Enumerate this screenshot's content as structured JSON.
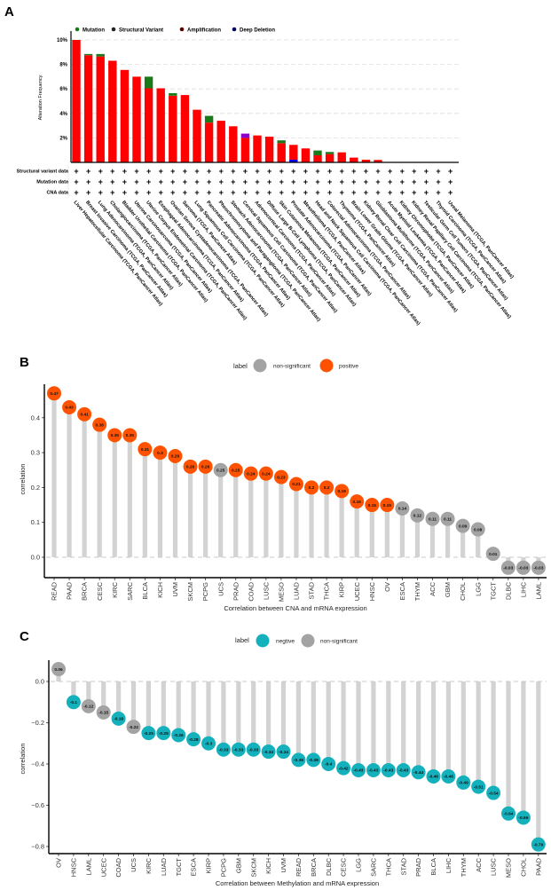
{
  "panels": {
    "a": "A",
    "b": "B",
    "c": "C"
  },
  "chart_data": [
    {
      "type": "bar",
      "stacked": true,
      "title": "",
      "ylabel": "Alteration Frequency",
      "ylim": [
        0,
        10.5
      ],
      "yticks": [
        "2%",
        "4%",
        "6%",
        "8%",
        "10%"
      ],
      "ytick_values": [
        2,
        4,
        6,
        8,
        10
      ],
      "grid": true,
      "legend_position": "top",
      "legend": [
        {
          "key": "mutation",
          "label": "Mutation",
          "color": "#1a7a1a"
        },
        {
          "key": "sv",
          "label": "Structural Variant",
          "color": "#8b00c9"
        },
        {
          "key": "amp",
          "label": "Amplification",
          "color": "#ff0000"
        },
        {
          "key": "dd",
          "label": "Deep Deletion",
          "color": "#0000ee"
        }
      ],
      "series_order": [
        "dd",
        "amp",
        "sv",
        "mutation"
      ],
      "data_rows": [
        "Structural variant data",
        "Mutation data",
        "CNA data"
      ],
      "row_marker": "+",
      "categories": [
        "Liver Hepatocellular Carcinoma (TCGA, PanCancer Atlas)",
        "Breast Invasive Carcinoma (TCGA, PanCancer Atlas)",
        "Lung Adenocarcinoma (TCGA, PanCancer Atlas)",
        "Cholangiocarcinoma (TCGA, PanCancer Atlas)",
        "Bladder Urothelial Carcinoma (TCGA, PanCancer Atlas)",
        "Uterine Carcinosarcoma (TCGA, PanCancer Atlas)",
        "Uterine Corpus Endometrial Carcinoma (TCGA, PanCancer Atlas)",
        "Esophageal Adenocarcinoma (TCGA, PanCancer Atlas)",
        "Ovarian Serous Cystadenocarcinoma (TCGA, PanCancer Atlas)",
        "Sarcoma (TCGA, PanCancer Atlas)",
        "Lung Squamous Cell Carcinoma (TCGA, PanCancer Atlas)",
        "Pancreatic Adenocarcinoma (TCGA, PanCancer Atlas)",
        "Pheochromocytoma and Paraganglioma (TCGA, PanCancer Atlas)",
        "Stomach Adenocarcinoma (TCGA, PanCancer Atlas)",
        "Cervical Squamous Cell Carcinoma (TCGA, PanCancer Atlas)",
        "Adrenocortical Carcinoma (TCGA, PanCancer Atlas)",
        "Diffuse Large B-Cell Lymphoma (TCGA, PanCancer Atlas)",
        "Skin Cutaneous Melanoma (TCGA, PanCancer Atlas)",
        "Prostate Adenocarcinoma (TCGA, PanCancer Atlas)",
        "Mesothelioma (TCGA, PanCancer Atlas)",
        "Head and Neck Squamous Cell Carcinoma (TCGA, PanCancer Atlas)",
        "Colorectal Adenocarcinoma (TCGA, PanCancer Atlas)",
        "Thymoma (TCGA, PanCancer Atlas)",
        "Brain Lower Grade Glioma (TCGA, PanCancer Atlas)",
        "Kidney Renal Clear Cell Carcinoma (TCGA, PanCancer Atlas)",
        "Glioblastoma Multiforme (TCGA, PanCancer Atlas)",
        "Acute Myeloid Leukemia (TCGA, PanCancer Atlas)",
        "Kidney Chromophobe (TCGA, PanCancer Atlas)",
        "Kidney Renal Papillary Cell Carcinoma (TCGA, PanCancer Atlas)",
        "Testicular Germ Cell Tumors (TCGA, PanCancer Atlas)",
        "Thyroid Carcinoma (TCGA, PanCancer Atlas)",
        "Uveal Melanoma (TCGA, PanCancer Atlas)"
      ],
      "series": [
        {
          "name": "Deep Deletion",
          "key": "dd",
          "values": [
            0,
            0,
            0,
            0,
            0,
            0,
            0,
            0,
            0,
            0,
            0,
            0,
            0,
            0,
            0,
            0,
            0,
            0,
            0.22,
            0,
            0,
            0,
            0,
            0,
            0,
            0,
            0,
            0,
            0,
            0,
            0,
            0
          ]
        },
        {
          "name": "Amplification",
          "key": "amp",
          "values": [
            10.0,
            8.75,
            8.65,
            8.3,
            7.55,
            7.0,
            6.05,
            6.05,
            5.45,
            5.5,
            4.3,
            3.25,
            3.4,
            2.95,
            2.0,
            2.2,
            2.1,
            1.57,
            1.21,
            1.14,
            0.58,
            0.68,
            0.82,
            0.39,
            0.22,
            0.2,
            0,
            0,
            0,
            0,
            0,
            0
          ]
        },
        {
          "name": "Structural Variant",
          "key": "sv",
          "values": [
            0,
            0,
            0,
            0,
            0,
            0,
            0,
            0,
            0,
            0,
            0,
            0,
            0,
            0,
            0.35,
            0,
            0,
            0,
            0,
            0,
            0,
            0,
            0,
            0,
            0,
            0,
            0,
            0,
            0,
            0,
            0,
            0
          ]
        },
        {
          "name": "Mutation",
          "key": "mutation",
          "values": [
            0,
            0.1,
            0.2,
            0,
            0,
            0,
            0.95,
            0,
            0.2,
            0,
            0,
            0.55,
            0,
            0,
            0,
            0,
            0,
            0.23,
            0,
            0,
            0.39,
            0.17,
            0,
            0,
            0,
            0,
            0,
            0,
            0,
            0,
            0,
            0
          ]
        }
      ]
    },
    {
      "type": "lollipop",
      "title": "",
      "xlabel": "Correlation between CNA and mRNA expression",
      "ylabel": "correlation",
      "ylim": [
        -0.05,
        0.49
      ],
      "yticks": [
        "0.0",
        "0.1",
        "0.2",
        "0.3",
        "0.4"
      ],
      "ytick_values": [
        0,
        0.1,
        0.2,
        0.3,
        0.4
      ],
      "legend_title": "label",
      "legend_position": "top-right",
      "legend": [
        {
          "key": "ns",
          "label": "non-significant",
          "color": "#a3a3a3"
        },
        {
          "key": "pos",
          "label": "positive",
          "color": "#ff5200"
        }
      ],
      "categories": [
        "READ",
        "PAAD",
        "BRCA",
        "CESC",
        "KIRC",
        "SARC",
        "BLCA",
        "KICH",
        "UVM",
        "SKCM",
        "PCPG",
        "UCS",
        "PRAD",
        "COAD",
        "LUSC",
        "MESO",
        "LUAD",
        "STAD",
        "THCA",
        "KIRP",
        "UCEC",
        "HNSC",
        "OV",
        "ESCA",
        "THYM",
        "ACC",
        "GBM",
        "CHOL",
        "LGG",
        "TGCT",
        "DLBC",
        "LIHC",
        "LAML"
      ],
      "values": [
        0.47,
        0.43,
        0.41,
        0.38,
        0.35,
        0.35,
        0.31,
        0.3,
        0.29,
        0.26,
        0.26,
        0.25,
        0.25,
        0.24,
        0.24,
        0.23,
        0.21,
        0.2,
        0.2,
        0.19,
        0.16,
        0.15,
        0.15,
        0.14,
        0.12,
        0.11,
        0.11,
        0.09,
        0.08,
        0.01,
        -0.03,
        -0.03,
        -0.03
      ],
      "value_labels": [
        "0.47",
        "0.43",
        "0.41",
        "0.38",
        "0.35",
        "0.35",
        "0.31",
        "0.3",
        "0.29",
        "0.26",
        "0.26",
        "0.25",
        "0.25",
        "0.24",
        "0.24",
        "0.23",
        "0.21",
        "0.2",
        "0.2",
        "0.19",
        "0.16",
        "0.15",
        "0.15",
        "0.14",
        "0.12",
        "0.11",
        "0.11",
        "0.09",
        "0.08",
        "0.01",
        "-0.03",
        "-0.03",
        "-0.03"
      ],
      "groups": [
        "pos",
        "pos",
        "pos",
        "pos",
        "pos",
        "pos",
        "pos",
        "pos",
        "pos",
        "pos",
        "pos",
        "ns",
        "pos",
        "pos",
        "pos",
        "pos",
        "pos",
        "pos",
        "pos",
        "pos",
        "pos",
        "pos",
        "pos",
        "ns",
        "ns",
        "ns",
        "ns",
        "ns",
        "ns",
        "ns",
        "ns",
        "ns",
        "ns"
      ]
    },
    {
      "type": "lollipop",
      "title": "",
      "xlabel": "Correlation between Methylation and mRNA expression",
      "ylabel": "correlation",
      "ylim": [
        -0.83,
        0.1
      ],
      "yticks": [
        "0.0",
        "−0.2",
        "−0.4",
        "−0.6",
        "−0.8"
      ],
      "ytick_values": [
        0,
        -0.2,
        -0.4,
        -0.6,
        -0.8
      ],
      "legend_title": "label",
      "legend_position": "top-right",
      "legend": [
        {
          "key": "neg",
          "label": "negtive",
          "color": "#14b1bd"
        },
        {
          "key": "ns",
          "label": "non-significant",
          "color": "#a3a3a3"
        }
      ],
      "categories": [
        "OV",
        "HNSC",
        "LAML",
        "UCEC",
        "COAD",
        "UCS",
        "KIRC",
        "LUAD",
        "TGCT",
        "ESCA",
        "KIRP",
        "PCPG",
        "GBM",
        "SKCM",
        "KICH",
        "UVM",
        "READ",
        "BRCA",
        "DLBC",
        "CESC",
        "LGG",
        "SARC",
        "THCA",
        "STAD",
        "PRAD",
        "BLCA",
        "LIHC",
        "THYM",
        "ACC",
        "LUSC",
        "MESO",
        "CHOL",
        "PAAD"
      ],
      "values": [
        0.06,
        -0.1,
        -0.12,
        -0.15,
        -0.18,
        -0.22,
        -0.25,
        -0.25,
        -0.26,
        -0.28,
        -0.3,
        -0.33,
        -0.33,
        -0.33,
        -0.34,
        -0.34,
        -0.38,
        -0.38,
        -0.4,
        -0.42,
        -0.43,
        -0.43,
        -0.43,
        -0.43,
        -0.44,
        -0.46,
        -0.46,
        -0.49,
        -0.51,
        -0.54,
        -0.64,
        -0.66,
        -0.79
      ],
      "value_labels": [
        "0.06",
        "-0.1",
        "-0.12",
        "-0.15",
        "-0.18",
        "-0.22",
        "-0.25",
        "-0.25",
        "-0.26",
        "-0.28",
        "-0.3",
        "-0.33",
        "-0.33",
        "-0.33",
        "-0.34",
        "-0.34",
        "-0.38",
        "-0.38",
        "-0.4",
        "-0.42",
        "-0.43",
        "-0.43",
        "-0.43",
        "-0.43",
        "-0.44",
        "-0.46",
        "-0.46",
        "-0.49",
        "-0.51",
        "-0.54",
        "-0.64",
        "-0.66",
        "-0.79"
      ],
      "groups": [
        "ns",
        "neg",
        "ns",
        "ns",
        "neg",
        "ns",
        "neg",
        "neg",
        "neg",
        "neg",
        "neg",
        "neg",
        "neg",
        "neg",
        "neg",
        "neg",
        "neg",
        "neg",
        "neg",
        "neg",
        "neg",
        "neg",
        "neg",
        "neg",
        "neg",
        "neg",
        "neg",
        "neg",
        "neg",
        "neg",
        "neg",
        "neg",
        "neg"
      ]
    }
  ]
}
